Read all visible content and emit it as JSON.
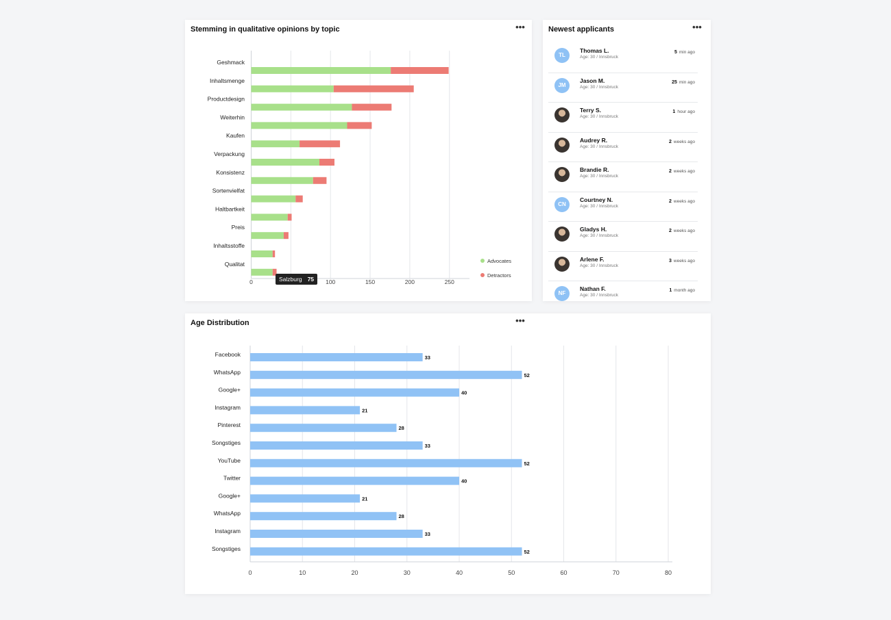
{
  "stemming_card": {
    "title": "Stemming in qualitative opinions by topic",
    "legend": [
      {
        "label": "Advocates",
        "color": "#a8e08a"
      },
      {
        "label": "Detractors",
        "color": "#ec7b74"
      }
    ],
    "tooltip": {
      "label": "Salzburg",
      "value": "75"
    }
  },
  "applicants_card": {
    "title": "Newest applicants",
    "items": [
      {
        "initials": "TL",
        "avatar": "initials",
        "name": "Thomas L.",
        "sub": "Age: 30 / Innsbruck",
        "time_num": "5",
        "time_unit": "min ago"
      },
      {
        "initials": "JM",
        "avatar": "initials",
        "name": "Jason M.",
        "sub": "Age: 30 / Innsbruck",
        "time_num": "25",
        "time_unit": "min ago"
      },
      {
        "initials": "",
        "avatar": "photo",
        "name": "Terry S.",
        "sub": "Age: 30 / Innsbruck",
        "time_num": "1",
        "time_unit": "hour ago"
      },
      {
        "initials": "",
        "avatar": "photo",
        "name": "Audrey R.",
        "sub": "Age: 30 / Innsbruck",
        "time_num": "2",
        "time_unit": "weeks ago"
      },
      {
        "initials": "",
        "avatar": "photo",
        "name": "Brandie R.",
        "sub": "Age: 30 / Innsbruck",
        "time_num": "2",
        "time_unit": "weeks ago"
      },
      {
        "initials": "CN",
        "avatar": "initials",
        "name": "Courtney N.",
        "sub": "Age: 30 / Innsbruck",
        "time_num": "2",
        "time_unit": "weeks ago"
      },
      {
        "initials": "",
        "avatar": "photo",
        "name": "Gladys H.",
        "sub": "Age: 30 / Innsbruck",
        "time_num": "2",
        "time_unit": "weeks ago"
      },
      {
        "initials": "",
        "avatar": "photo",
        "name": "Arlene F.",
        "sub": "Age: 30 / Innsbruck",
        "time_num": "3",
        "time_unit": "weeks ago"
      },
      {
        "initials": "NF",
        "avatar": "initials",
        "name": "Nathan F.",
        "sub": "Age: 30 / Innsbruck",
        "time_num": "1",
        "time_unit": "month ago"
      }
    ]
  },
  "age_card": {
    "title": "Age Distribution"
  },
  "icons": {
    "more": "more-horizontal-icon"
  },
  "chart_data": [
    {
      "type": "bar",
      "orientation": "horizontal",
      "stacked": true,
      "title": "Stemming in qualitative opinions by topic",
      "categories": [
        "Geshmack",
        "Inhaltsmenge",
        "Productdesign",
        "Weiterhin",
        "Kaufen",
        "Verpackung",
        "Konsistenz",
        "Sortenvielfat",
        "Haltbartkeit",
        "Preis",
        "Inhaltsstoffe",
        "Qualitat"
      ],
      "series": [
        {
          "name": "Advocates",
          "color": "#a8e08a",
          "values": [
            176,
            104,
            127,
            121,
            61,
            86,
            78,
            56,
            46,
            41,
            27,
            27
          ]
        },
        {
          "name": "Detractors",
          "color": "#ec7b74",
          "values": [
            73,
            101,
            50,
            31,
            51,
            19,
            17,
            9,
            5,
            6,
            3,
            5
          ]
        }
      ],
      "xlim": [
        0,
        270
      ],
      "xticks": [
        0,
        50,
        100,
        150,
        200,
        250
      ],
      "grid": true,
      "legend_position": "bottom-right"
    },
    {
      "type": "bar",
      "orientation": "horizontal",
      "title": "Age Distribution",
      "categories": [
        "Facebook",
        "WhatsApp",
        "Google+",
        "Instagram",
        "Pinterest",
        "Songstiges",
        "YouTube",
        "Twitter",
        "Google+",
        "WhatsApp",
        "Instagram",
        "Songstiges"
      ],
      "values": [
        33,
        52,
        40,
        21,
        28,
        33,
        52,
        40,
        21,
        28,
        33,
        52
      ],
      "color": "#90c2f5",
      "xlim": [
        0,
        80
      ],
      "xticks": [
        0,
        10,
        20,
        30,
        40,
        50,
        60,
        70,
        80
      ],
      "grid": true,
      "data_labels": true
    }
  ]
}
